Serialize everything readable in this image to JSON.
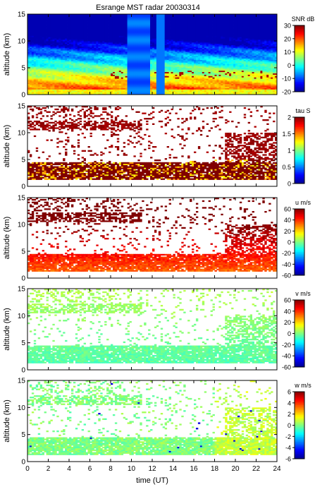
{
  "title": "Esrange MST radar 20030314",
  "colors": {
    "jet_stops": [
      "#00008f",
      "#0000ff",
      "#0080ff",
      "#00ffff",
      "#80ff80",
      "#ffff00",
      "#ff8000",
      "#ff0000",
      "#800000"
    ],
    "low_snr_blank": "#ffffff"
  },
  "chart_data": [
    {
      "type": "heatmap",
      "quantity": "SNR",
      "colorbar_label": "SNR dB",
      "colorbar_ticks": [
        "30",
        "20",
        "10",
        "0",
        "-10",
        "-20"
      ],
      "clim": [
        -20,
        30
      ],
      "ylabel": "altitude (km)",
      "yticks": [
        "15",
        "10",
        "5",
        "0"
      ],
      "ylim": [
        0,
        15
      ],
      "xlim": [
        0,
        24
      ],
      "altitude_profile_km": [
        1,
        2,
        3,
        4,
        5,
        6,
        8,
        10,
        12,
        14
      ],
      "typical_values": [
        22,
        16,
        10,
        5,
        2,
        -2,
        -6,
        -9,
        -11,
        -13
      ],
      "gap_hours": [
        [
          9.6,
          11.8
        ],
        [
          12.3,
          13.1
        ]
      ]
    },
    {
      "type": "heatmap",
      "quantity": "tau",
      "colorbar_label": "tau S",
      "colorbar_ticks": [
        "2",
        "1.5",
        "1",
        "0.5",
        "0"
      ],
      "clim": [
        0,
        2
      ],
      "ylabel": "altitude (km)",
      "yticks": [
        "15",
        "10",
        "5",
        "0"
      ],
      "ylim": [
        0,
        15
      ],
      "xlim": [
        0,
        24
      ],
      "dominant_value": 2,
      "notes": "saturated (dark red) echoes 2-4 km and 10.5-12 km; upper layer 6-10 km after 20 UT"
    },
    {
      "type": "heatmap",
      "quantity": "u",
      "colorbar_label": "u m/s",
      "colorbar_ticks": [
        "60",
        "40",
        "20",
        "0",
        "-20",
        "-40",
        "-60"
      ],
      "clim": [
        -60,
        60
      ],
      "ylabel": "altitude (km)",
      "yticks": [
        "15",
        "10",
        "5",
        "0"
      ],
      "ylim": [
        0,
        15
      ],
      "xlim": [
        0,
        24
      ],
      "altitude_profile_km": [
        1,
        3,
        5,
        8,
        11,
        14
      ],
      "typical_values": [
        35,
        40,
        42,
        50,
        52,
        48
      ]
    },
    {
      "type": "heatmap",
      "quantity": "v",
      "colorbar_label": "v m/s",
      "colorbar_ticks": [
        "60",
        "40",
        "20",
        "0",
        "-20",
        "-40",
        "-60"
      ],
      "clim": [
        -60,
        60
      ],
      "ylabel": "altitude (km)",
      "yticks": [
        "15",
        "10",
        "5",
        "0"
      ],
      "ylim": [
        0,
        15
      ],
      "xlim": [
        0,
        24
      ],
      "typical_values": [
        -8,
        -5,
        0,
        5
      ]
    },
    {
      "type": "heatmap",
      "quantity": "w",
      "colorbar_label": "w m/s",
      "colorbar_ticks": [
        "6",
        "4",
        "2",
        "0",
        "-2",
        "-4",
        "-6"
      ],
      "clim": [
        -6,
        6
      ],
      "ylabel": "altitude (km)",
      "yticks": [
        "15",
        "10",
        "5",
        "0"
      ],
      "ylim": [
        0,
        15
      ],
      "xlim": [
        0,
        24
      ],
      "typical_values": [
        -0.5,
        0,
        0.5,
        1,
        2
      ]
    }
  ],
  "xaxis": {
    "label": "time (UT)",
    "ticks": [
      "0",
      "2",
      "4",
      "6",
      "8",
      "10",
      "12",
      "14",
      "16",
      "18",
      "20",
      "22",
      "24"
    ]
  }
}
